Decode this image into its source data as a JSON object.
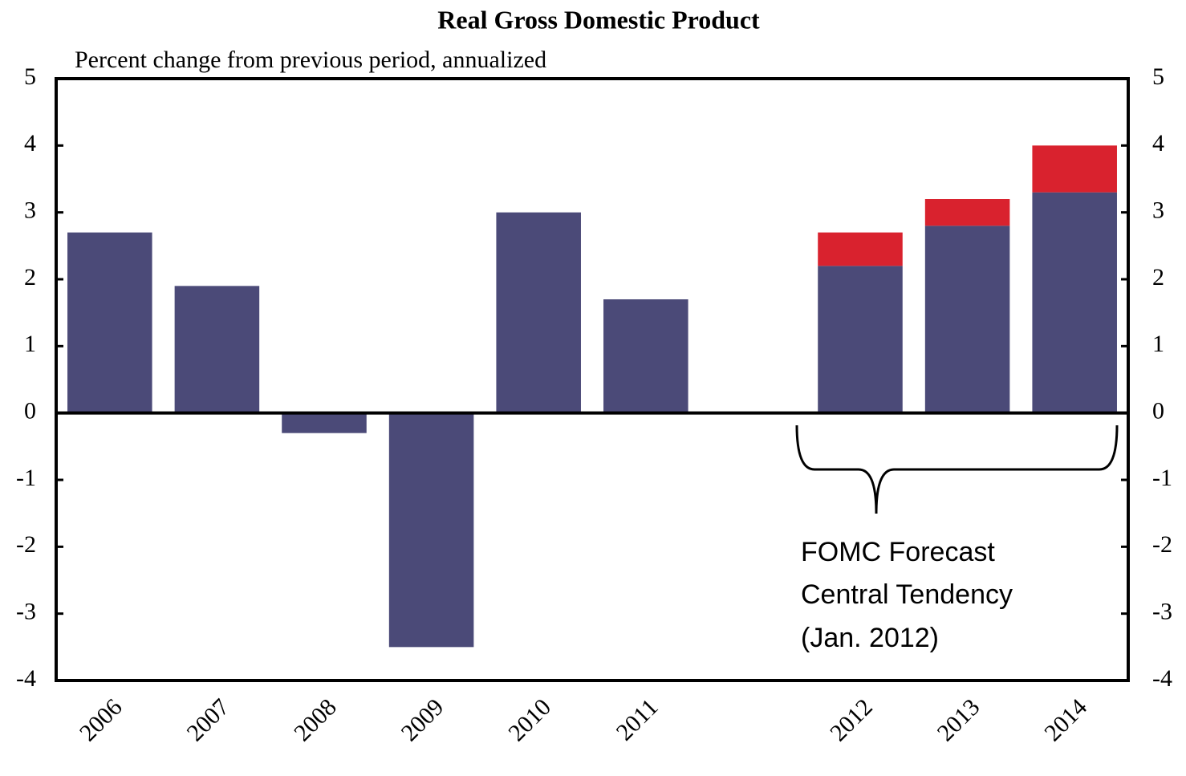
{
  "chart_data": {
    "type": "bar",
    "stacked": true,
    "title": "Real Gross Domestic Product",
    "subtitle": "Percent change from previous period, annualized",
    "categories": [
      "2006",
      "2007",
      "2008",
      "2009",
      "2010",
      "2011",
      null,
      "2012",
      "2013",
      "2014"
    ],
    "series": [
      {
        "color": "#4b4a78",
        "values": [
          2.7,
          1.9,
          -0.3,
          -3.5,
          3.0,
          1.7,
          null,
          2.2,
          2.8,
          3.3
        ]
      },
      {
        "color": "#d9222e",
        "values": [
          null,
          null,
          null,
          null,
          null,
          null,
          null,
          0.5,
          0.4,
          0.7
        ]
      }
    ],
    "ylim": [
      -4,
      5
    ],
    "yticks": [
      -4,
      -3,
      -2,
      -1,
      0,
      1,
      2,
      3,
      4,
      5
    ],
    "y2lim": [
      -4,
      5
    ],
    "y2ticks": [
      -4,
      -3,
      -2,
      -1,
      0,
      1,
      2,
      3,
      4,
      5
    ],
    "grid": false,
    "annotation": [
      "FOMC Forecast",
      "Central Tendency",
      "(Jan. 2012)"
    ]
  }
}
